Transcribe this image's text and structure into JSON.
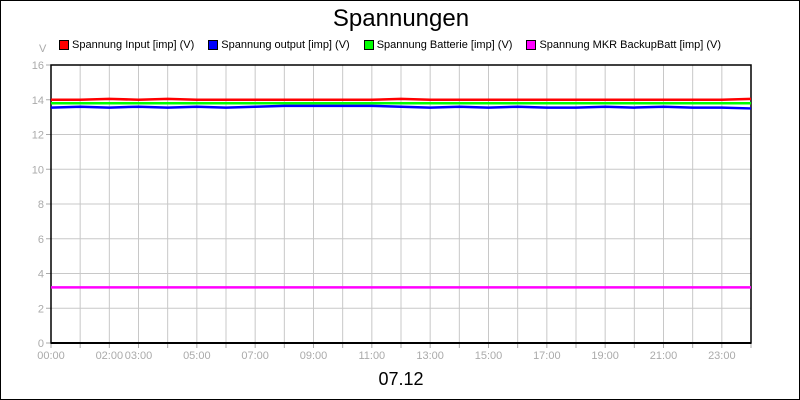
{
  "chart_data": {
    "type": "line",
    "title": "Spannungen",
    "ylabel": "V",
    "xlabel": "07.12",
    "ylim": [
      0,
      16
    ],
    "yticks": [
      "0",
      "2",
      "4",
      "6",
      "8",
      "10",
      "12",
      "14",
      "16"
    ],
    "xlim_hours": [
      0,
      24
    ],
    "xticks": [
      {
        "label": "00:00",
        "h": 0
      },
      {
        "label": "02:00",
        "h": 2
      },
      {
        "label": "03:00",
        "h": 3
      },
      {
        "label": "05:00",
        "h": 5
      },
      {
        "label": "07:00",
        "h": 7
      },
      {
        "label": "09:00",
        "h": 9
      },
      {
        "label": "11:00",
        "h": 11
      },
      {
        "label": "13:00",
        "h": 13
      },
      {
        "label": "15:00",
        "h": 15
      },
      {
        "label": "17:00",
        "h": 17
      },
      {
        "label": "19:00",
        "h": 19
      },
      {
        "label": "21:00",
        "h": 21
      },
      {
        "label": "23:00",
        "h": 23
      }
    ],
    "grid": true,
    "legend_position": "top",
    "x_hours": [
      0,
      1,
      2,
      3,
      4,
      5,
      6,
      7,
      8,
      9,
      10,
      11,
      12,
      13,
      14,
      15,
      16,
      17,
      18,
      19,
      20,
      21,
      22,
      23,
      24
    ],
    "series": [
      {
        "name": "Spannung Input [imp] (V)",
        "color": "#ff0000",
        "values": [
          14.0,
          14.0,
          14.05,
          14.0,
          14.05,
          14.0,
          14.0,
          14.0,
          14.0,
          14.0,
          14.0,
          14.0,
          14.05,
          14.0,
          14.0,
          14.0,
          14.0,
          14.0,
          14.0,
          14.0,
          14.0,
          14.0,
          14.0,
          14.0,
          14.05
        ]
      },
      {
        "name": "Spannung output [imp] (V)",
        "color": "#0000ff",
        "values": [
          13.55,
          13.6,
          13.55,
          13.6,
          13.55,
          13.6,
          13.55,
          13.6,
          13.65,
          13.65,
          13.65,
          13.65,
          13.6,
          13.55,
          13.6,
          13.55,
          13.6,
          13.55,
          13.55,
          13.6,
          13.55,
          13.6,
          13.55,
          13.55,
          13.5
        ]
      },
      {
        "name": "Spannung Batterie [imp] (V)",
        "color": "#00ff00",
        "values": [
          13.8,
          13.8,
          13.8,
          13.8,
          13.8,
          13.8,
          13.8,
          13.8,
          13.8,
          13.8,
          13.8,
          13.8,
          13.8,
          13.8,
          13.8,
          13.8,
          13.8,
          13.8,
          13.8,
          13.8,
          13.8,
          13.8,
          13.8,
          13.8,
          13.8
        ]
      },
      {
        "name": "Spannung MKR BackupBatt [imp] (V)",
        "color": "#ff00ff",
        "values": [
          3.2,
          3.2,
          3.2,
          3.2,
          3.2,
          3.2,
          3.2,
          3.2,
          3.2,
          3.2,
          3.2,
          3.2,
          3.2,
          3.2,
          3.2,
          3.2,
          3.2,
          3.2,
          3.2,
          3.2,
          3.2,
          3.2,
          3.2,
          3.2,
          3.2
        ]
      }
    ]
  }
}
